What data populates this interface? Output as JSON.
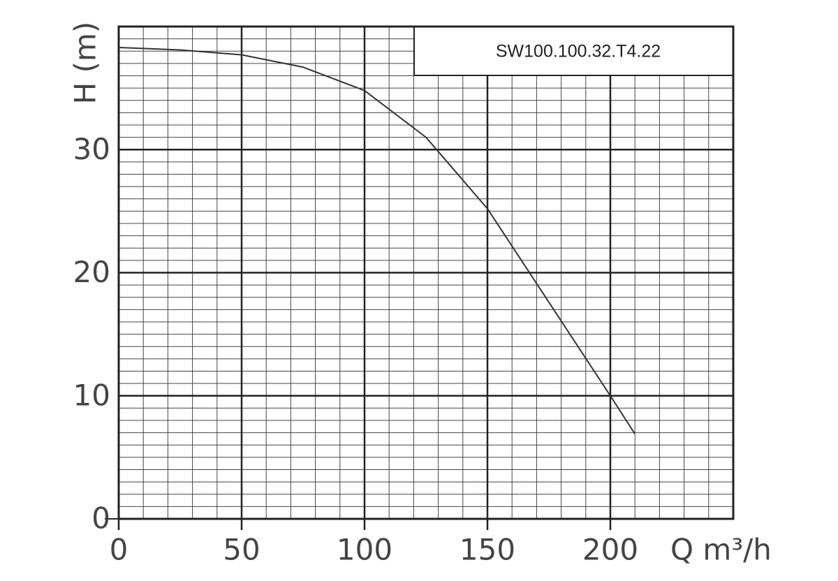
{
  "chart_data": {
    "type": "line",
    "title": "SW100.100.32.T4.22",
    "x_label": "Q m³/h",
    "y_label": "H (m)",
    "x": [
      0,
      25,
      50,
      75,
      100,
      125,
      150,
      175,
      200,
      210
    ],
    "series": [
      {
        "name": "H",
        "color": "#333333",
        "values": [
          38.3,
          38.1,
          37.7,
          36.7,
          34.8,
          31.0,
          25.2,
          17.6,
          10.0,
          6.9
        ]
      }
    ],
    "xlim": [
      0,
      250
    ],
    "xticks": [
      0,
      50,
      100,
      150,
      200
    ],
    "ylim": [
      0,
      40
    ],
    "yticks": [
      0,
      10,
      20,
      30
    ],
    "grid": true,
    "minor_grid": {
      "x": 10,
      "y": 1
    }
  }
}
